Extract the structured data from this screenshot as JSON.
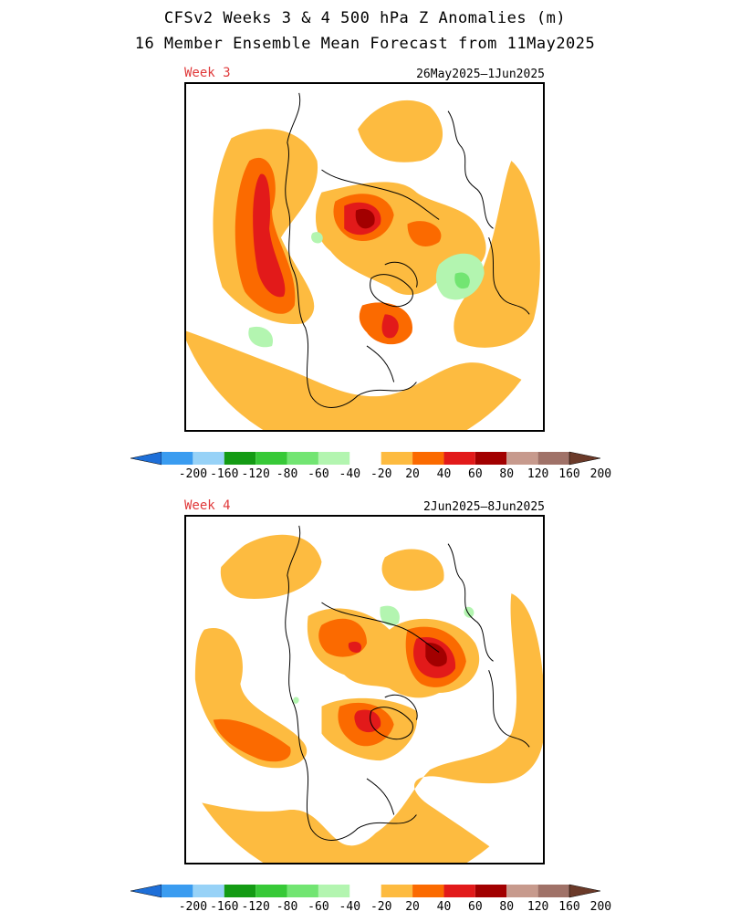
{
  "header": {
    "title_line1": "CFSv2 Weeks 3 & 4 500 hPa Z Anomalies (m)",
    "title_line2": "16 Member Ensemble Mean Forecast from 11May2025"
  },
  "panels": [
    {
      "week": "Week 3",
      "dates": "26May2025–1Jun2025"
    },
    {
      "week": "Week 4",
      "dates": "2Jun2025–8Jun2025"
    }
  ],
  "legend": {
    "ticks": [
      "-200",
      "-160",
      "-120",
      "-80",
      "-60",
      "-40",
      "-20",
      "20",
      "40",
      "60",
      "80",
      "120",
      "160",
      "200"
    ],
    "colors": [
      "#1e6fd8",
      "#3a9cf0",
      "#97d2f7",
      "#149b14",
      "#37c937",
      "#72e572",
      "#b3f5b0",
      "#ffffff",
      "#fdbb40",
      "#fb6a00",
      "#e21a1a",
      "#a20000",
      "#c79a8d",
      "#a07268",
      "#6b3a29"
    ]
  },
  "colors": {
    "c20": "#fdbb40",
    "c40": "#fb6a00",
    "c60": "#e21a1a",
    "c80": "#a20000",
    "cn20": "#b3f5b0",
    "cn40": "#72e572",
    "week_label": "#e0393a"
  }
}
